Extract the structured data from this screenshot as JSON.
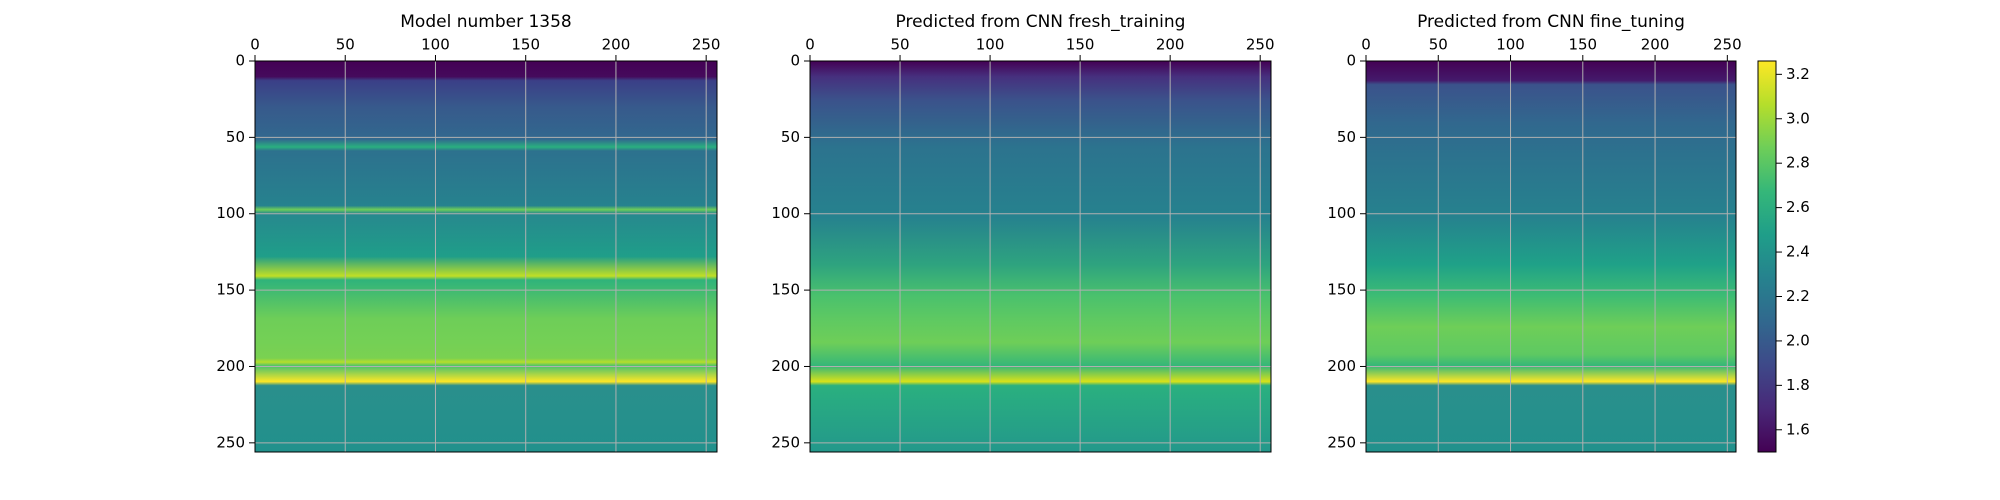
{
  "chart_data": [
    {
      "type": "heatmap",
      "title": "Model number 1358",
      "xlim": [
        0,
        256
      ],
      "ylim": [
        256,
        0
      ],
      "xticks": [
        0,
        50,
        100,
        150,
        200,
        250
      ],
      "yticks": [
        0,
        50,
        100,
        150,
        200,
        250
      ],
      "grid": true
    },
    {
      "type": "heatmap",
      "title": "Predicted from CNN fresh_training",
      "xlim": [
        0,
        256
      ],
      "ylim": [
        256,
        0
      ],
      "xticks": [
        0,
        50,
        100,
        150,
        200,
        250
      ],
      "yticks": [
        0,
        50,
        100,
        150,
        200,
        250
      ],
      "grid": true
    },
    {
      "type": "heatmap",
      "title": "Predicted from CNN fine_tuning",
      "xlim": [
        0,
        256
      ],
      "ylim": [
        256,
        0
      ],
      "xticks": [
        0,
        50,
        100,
        150,
        200,
        250
      ],
      "yticks": [
        0,
        50,
        100,
        150,
        200,
        250
      ],
      "grid": true
    },
    {
      "type": "colorbar",
      "colormap": "viridis",
      "clim": [
        1.5,
        3.26
      ],
      "ticks": [
        1.6,
        1.8,
        {
          "value": 2,
          "label": "2.0"
        },
        2.2,
        2.4,
        2.6,
        2.8,
        {
          "value": 3,
          "label": "3.0"
        },
        3.2
      ]
    }
  ]
}
